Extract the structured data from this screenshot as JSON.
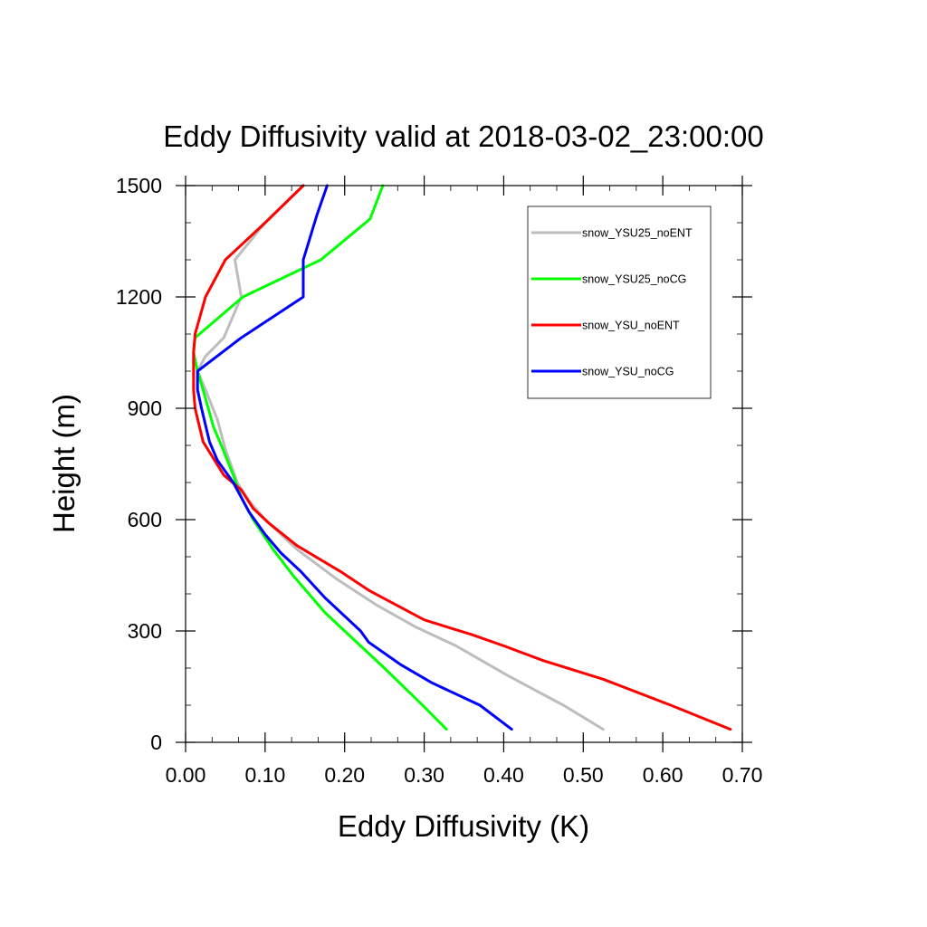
{
  "chart_data": {
    "type": "line",
    "title": "Eddy Diffusivity valid at 2018-03-02_23:00:00",
    "xlabel": "Eddy Diffusivity (K)",
    "ylabel": "Height (m)",
    "xlim": [
      0.0,
      0.7
    ],
    "ylim": [
      0,
      1500
    ],
    "xticks": [
      "0.00",
      "0.10",
      "0.20",
      "0.30",
      "0.40",
      "0.50",
      "0.60",
      "0.70"
    ],
    "yticks": [
      "0",
      "300",
      "600",
      "900",
      "1200",
      "1500"
    ],
    "grid": false,
    "legend_position": "top-right",
    "series": [
      {
        "name": "snow_YSU25_noENT",
        "color": "#bdbdbd",
        "points": [
          [
            0.525,
            35
          ],
          [
            0.475,
            100
          ],
          [
            0.405,
            180
          ],
          [
            0.34,
            260
          ],
          [
            0.29,
            310
          ],
          [
            0.24,
            370
          ],
          [
            0.19,
            440
          ],
          [
            0.14,
            520
          ],
          [
            0.1,
            600
          ],
          [
            0.08,
            650
          ],
          [
            0.065,
            700
          ],
          [
            0.05,
            790
          ],
          [
            0.04,
            870
          ],
          [
            0.025,
            950
          ],
          [
            0.015,
            1000
          ],
          [
            0.025,
            1040
          ],
          [
            0.048,
            1090
          ],
          [
            0.07,
            1200
          ],
          [
            0.062,
            1300
          ],
          [
            0.1,
            1400
          ],
          [
            0.148,
            1500
          ]
        ]
      },
      {
        "name": "snow_YSU25_noCG",
        "color": "#00ff00",
        "points": [
          [
            0.328,
            35
          ],
          [
            0.298,
            100
          ],
          [
            0.25,
            200
          ],
          [
            0.2,
            300
          ],
          [
            0.175,
            350
          ],
          [
            0.155,
            400
          ],
          [
            0.135,
            450
          ],
          [
            0.11,
            520
          ],
          [
            0.085,
            600
          ],
          [
            0.07,
            660
          ],
          [
            0.06,
            720
          ],
          [
            0.045,
            800
          ],
          [
            0.035,
            850
          ],
          [
            0.022,
            950
          ],
          [
            0.015,
            1000
          ],
          [
            0.01,
            1050
          ],
          [
            0.012,
            1090
          ],
          [
            0.072,
            1200
          ],
          [
            0.17,
            1300
          ],
          [
            0.232,
            1410
          ],
          [
            0.248,
            1500
          ]
        ]
      },
      {
        "name": "snow_YSU_noENT",
        "color": "#ff0000",
        "points": [
          [
            0.685,
            35
          ],
          [
            0.61,
            100
          ],
          [
            0.525,
            170
          ],
          [
            0.45,
            220
          ],
          [
            0.4,
            260
          ],
          [
            0.36,
            290
          ],
          [
            0.3,
            330
          ],
          [
            0.265,
            370
          ],
          [
            0.23,
            410
          ],
          [
            0.195,
            460
          ],
          [
            0.14,
            530
          ],
          [
            0.105,
            590
          ],
          [
            0.085,
            630
          ],
          [
            0.07,
            680
          ],
          [
            0.048,
            720
          ],
          [
            0.022,
            810
          ],
          [
            0.012,
            900
          ],
          [
            0.01,
            950
          ],
          [
            0.01,
            1050
          ],
          [
            0.012,
            1100
          ],
          [
            0.025,
            1200
          ],
          [
            0.05,
            1300
          ],
          [
            0.1,
            1400
          ],
          [
            0.148,
            1500
          ]
        ]
      },
      {
        "name": "snow_YSU_noCG",
        "color": "#0000ff",
        "points": [
          [
            0.41,
            35
          ],
          [
            0.37,
            100
          ],
          [
            0.31,
            160
          ],
          [
            0.27,
            210
          ],
          [
            0.23,
            270
          ],
          [
            0.22,
            300
          ],
          [
            0.175,
            390
          ],
          [
            0.145,
            460
          ],
          [
            0.12,
            510
          ],
          [
            0.1,
            560
          ],
          [
            0.08,
            620
          ],
          [
            0.06,
            700
          ],
          [
            0.04,
            760
          ],
          [
            0.03,
            810
          ],
          [
            0.02,
            900
          ],
          [
            0.015,
            950
          ],
          [
            0.015,
            1000
          ],
          [
            0.07,
            1090
          ],
          [
            0.148,
            1200
          ],
          [
            0.148,
            1300
          ],
          [
            0.165,
            1420
          ],
          [
            0.178,
            1500
          ]
        ]
      }
    ]
  }
}
